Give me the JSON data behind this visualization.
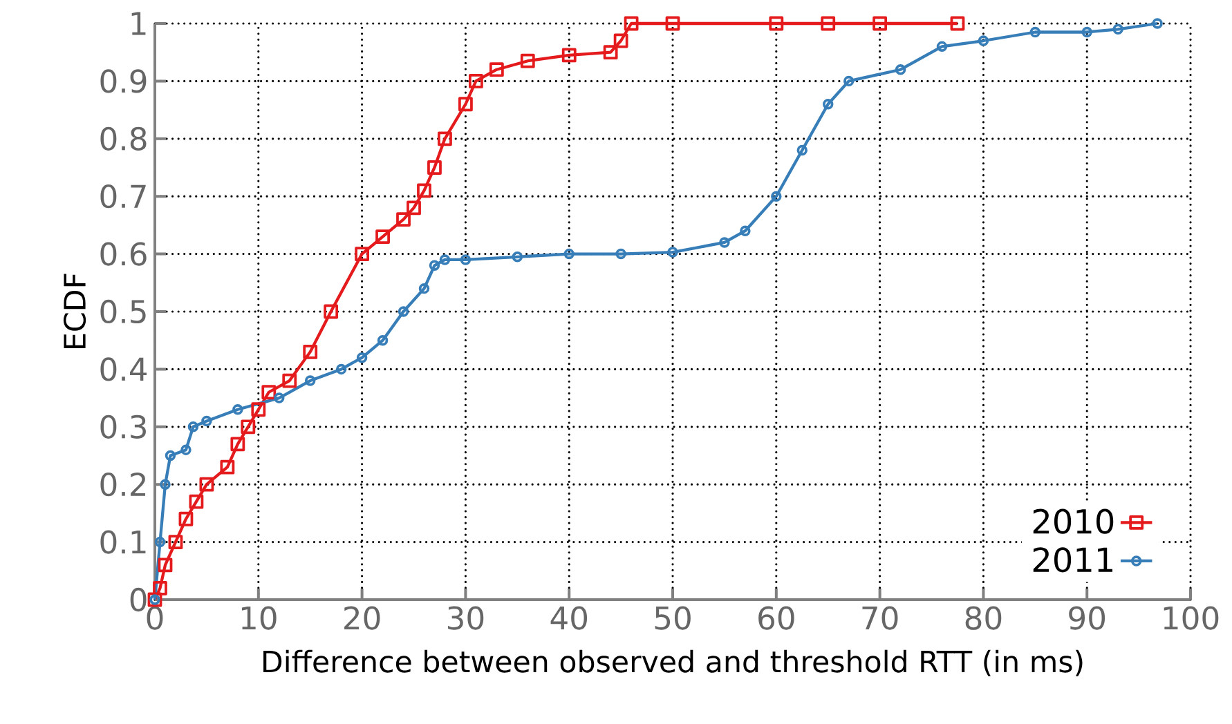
{
  "chart_data": {
    "type": "line",
    "xlabel": "Difference between observed and threshold RTT (in ms)",
    "ylabel": "ECDF",
    "xlim": [
      0,
      100
    ],
    "ylim": [
      0,
      1
    ],
    "xticks": [
      0,
      10,
      20,
      30,
      40,
      50,
      60,
      70,
      80,
      90,
      100
    ],
    "yticks": [
      0,
      0.1,
      0.2,
      0.3,
      0.4,
      0.5,
      0.6,
      0.7,
      0.8,
      0.9,
      1
    ],
    "grid": true,
    "legend": "bottom right",
    "series": [
      {
        "name": "2010",
        "color": "#e41a1c",
        "marker": "square",
        "x": [
          0,
          0.5,
          1,
          2,
          3,
          4,
          5,
          7,
          8,
          9,
          10,
          11,
          13,
          15,
          17,
          20,
          22,
          24,
          25,
          26,
          27,
          28,
          30,
          31,
          33,
          36,
          40,
          44,
          45,
          46,
          50,
          60,
          65,
          70,
          77.5
        ],
        "values": [
          0,
          0.02,
          0.06,
          0.1,
          0.14,
          0.17,
          0.2,
          0.23,
          0.27,
          0.3,
          0.33,
          0.36,
          0.38,
          0.43,
          0.5,
          0.6,
          0.63,
          0.66,
          0.68,
          0.71,
          0.75,
          0.8,
          0.86,
          0.9,
          0.92,
          0.935,
          0.945,
          0.95,
          0.97,
          1,
          1,
          1,
          1,
          1,
          1
        ]
      },
      {
        "name": "2011",
        "color": "#377eb8",
        "marker": "circle",
        "x": [
          0,
          0.5,
          1,
          1.5,
          3,
          3.7,
          5,
          8,
          12,
          15,
          18,
          20,
          22,
          24,
          26,
          27,
          28,
          30,
          35,
          40,
          45,
          50,
          55,
          57,
          60,
          62.5,
          65,
          67,
          72,
          76,
          80,
          85,
          90,
          93,
          96.8
        ],
        "values": [
          0,
          0.1,
          0.2,
          0.25,
          0.26,
          0.3,
          0.31,
          0.33,
          0.35,
          0.38,
          0.4,
          0.42,
          0.45,
          0.5,
          0.54,
          0.58,
          0.59,
          0.59,
          0.595,
          0.6,
          0.6,
          0.603,
          0.62,
          0.64,
          0.7,
          0.78,
          0.86,
          0.9,
          0.92,
          0.96,
          0.97,
          0.985,
          0.985,
          0.99,
          1
        ]
      }
    ]
  }
}
